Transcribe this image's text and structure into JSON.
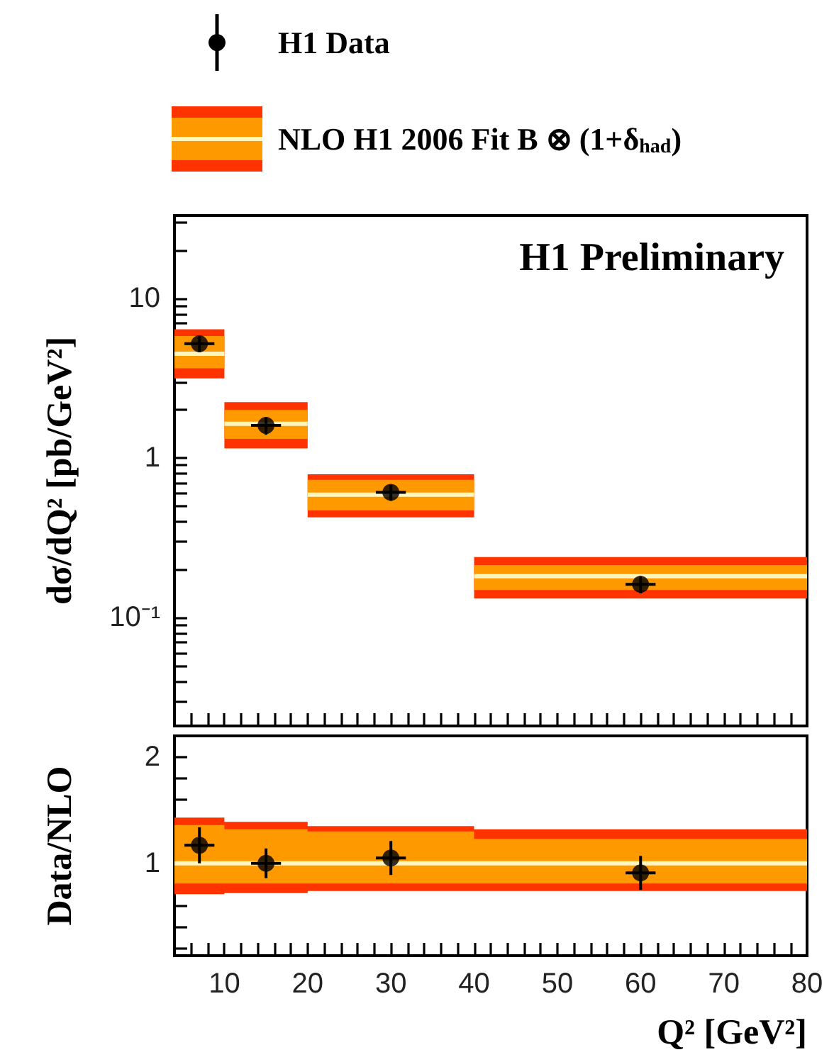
{
  "chart_data": [
    {
      "type": "scatter",
      "ylabel": "dσ/dQ² [pb/GeV²]",
      "annotations": [
        "H1 Preliminary"
      ],
      "legend": "top",
      "log": "y",
      "tick_labels": "y",
      "xlim": [
        4,
        80
      ],
      "ylim": [
        0.021,
        33
      ],
      "xticks": [
        {
          "value": 4,
          "label": null
        },
        {
          "value": 6,
          "label": null
        },
        {
          "value": 8,
          "label": null
        },
        10,
        {
          "value": 12,
          "label": null
        },
        {
          "value": 14,
          "label": null
        },
        {
          "value": 16,
          "label": null
        },
        {
          "value": 18,
          "label": null
        },
        20,
        {
          "value": 22,
          "label": null
        },
        {
          "value": 24,
          "label": null
        },
        {
          "value": 26,
          "label": null
        },
        {
          "value": 28,
          "label": null
        },
        30,
        {
          "value": 32,
          "label": null
        },
        {
          "value": 34,
          "label": null
        },
        {
          "value": 36,
          "label": null
        },
        {
          "value": 38,
          "label": null
        },
        40,
        {
          "value": 42,
          "label": null
        },
        {
          "value": 44,
          "label": null
        },
        {
          "value": 46,
          "label": null
        },
        {
          "value": 48,
          "label": null
        },
        50,
        {
          "value": 52,
          "label": null
        },
        {
          "value": 54,
          "label": null
        },
        {
          "value": 56,
          "label": null
        },
        {
          "value": 58,
          "label": null
        },
        60,
        {
          "value": 62,
          "label": null
        },
        {
          "value": 64,
          "label": null
        },
        {
          "value": 66,
          "label": null
        },
        {
          "value": 68,
          "label": null
        },
        70,
        {
          "value": 72,
          "label": null
        },
        {
          "value": 74,
          "label": null
        },
        {
          "value": 76,
          "label": null
        },
        {
          "value": 78,
          "label": null
        },
        80
      ],
      "yticks": [
        {
          "value": 0.03,
          "label": null
        },
        {
          "value": 0.04,
          "label": null
        },
        {
          "value": 0.05,
          "label": null
        },
        {
          "value": 0.06,
          "label": null
        },
        {
          "value": 0.07,
          "label": null
        },
        {
          "value": 0.08,
          "label": null
        },
        {
          "value": 0.09,
          "label": null
        },
        {
          "value": 0.1,
          "label": "10⁻¹"
        },
        {
          "value": 0.2,
          "label": null
        },
        {
          "value": 0.3,
          "label": null
        },
        {
          "value": 0.4,
          "label": null
        },
        {
          "value": 0.5,
          "label": null
        },
        {
          "value": 0.6,
          "label": null
        },
        {
          "value": 0.7,
          "label": null
        },
        {
          "value": 0.8,
          "label": null
        },
        {
          "value": 0.9,
          "label": null
        },
        1,
        {
          "value": 2,
          "label": null
        },
        {
          "value": 3,
          "label": null
        },
        {
          "value": 4,
          "label": null
        },
        {
          "value": 5,
          "label": null
        },
        {
          "value": 6,
          "label": null
        },
        {
          "value": 7,
          "label": null
        },
        {
          "value": 8,
          "label": null
        },
        {
          "value": 9,
          "label": null
        },
        10,
        {
          "value": 20,
          "label": null
        },
        {
          "value": 30,
          "label": null
        }
      ],
      "series": [
        {
          "name": "H1 Data",
          "marker": "circle",
          "color": "#000000",
          "x": [
            7,
            15,
            30,
            60
          ],
          "values": [
            5.2,
            1.6,
            0.61,
            0.162
          ],
          "errors": [
            0.6,
            0.2,
            0.07,
            0.02
          ],
          "xerrors": [
            1.8,
            1.8,
            1.8,
            1.8
          ]
        },
        {
          "type": "line",
          "color": "#ff3300",
          "x": [
            4,
            10,
            10,
            20,
            20,
            40,
            40,
            80
          ],
          "values": [
            null,
            null,
            null,
            null,
            null,
            null,
            null,
            null
          ],
          "lower": [
            3.15,
            3.15,
            1.15,
            1.15,
            0.425,
            0.425,
            0.132,
            0.132
          ],
          "upper": [
            6.4,
            6.4,
            2.24,
            2.24,
            0.79,
            0.79,
            0.24,
            0.24
          ]
        },
        {
          "type": "line",
          "color": "#ff9900",
          "x": [
            4,
            10,
            10,
            20,
            20,
            40,
            40,
            80
          ],
          "values": [
            null,
            null,
            null,
            null,
            null,
            null,
            null,
            null
          ],
          "lower": [
            3.65,
            3.65,
            1.32,
            1.32,
            0.47,
            0.47,
            0.149,
            0.149
          ],
          "upper": [
            5.8,
            5.8,
            2.0,
            2.0,
            0.73,
            0.73,
            0.214,
            0.214
          ]
        },
        {
          "name": "NLO H1 2006 Fit B ⊗ (1+δ$_{had}$)",
          "type": "line",
          "color": "#fff6c0",
          "x": [
            4,
            10,
            10,
            20,
            20,
            40,
            40,
            80
          ],
          "values": [
            4.5,
            4.5,
            1.64,
            1.64,
            0.59,
            0.59,
            0.182,
            0.182
          ]
        }
      ]
    },
    {
      "type": "scatter",
      "xlabel": "Q² [GeV²]",
      "ylabel": "Data/NLO",
      "xlim": [
        4,
        80
      ],
      "ylim": [
        0.13,
        2.2
      ],
      "xticks": [
        {
          "value": 4,
          "label": null
        },
        {
          "value": 6,
          "label": null
        },
        {
          "value": 8,
          "label": null
        },
        10,
        {
          "value": 12,
          "label": null
        },
        {
          "value": 14,
          "label": null
        },
        {
          "value": 16,
          "label": null
        },
        {
          "value": 18,
          "label": null
        },
        20,
        {
          "value": 22,
          "label": null
        },
        {
          "value": 24,
          "label": null
        },
        {
          "value": 26,
          "label": null
        },
        {
          "value": 28,
          "label": null
        },
        30,
        {
          "value": 32,
          "label": null
        },
        {
          "value": 34,
          "label": null
        },
        {
          "value": 36,
          "label": null
        },
        {
          "value": 38,
          "label": null
        },
        40,
        {
          "value": 42,
          "label": null
        },
        {
          "value": 44,
          "label": null
        },
        {
          "value": 46,
          "label": null
        },
        {
          "value": 48,
          "label": null
        },
        50,
        {
          "value": 52,
          "label": null
        },
        {
          "value": 54,
          "label": null
        },
        {
          "value": 56,
          "label": null
        },
        {
          "value": 58,
          "label": null
        },
        60,
        {
          "value": 62,
          "label": null
        },
        {
          "value": 64,
          "label": null
        },
        {
          "value": 66,
          "label": null
        },
        {
          "value": 68,
          "label": null
        },
        70,
        {
          "value": 72,
          "label": null
        },
        {
          "value": 74,
          "label": null
        },
        {
          "value": 76,
          "label": null
        },
        {
          "value": 78,
          "label": null
        },
        80
      ],
      "yticks": [
        {
          "value": 0.2,
          "label": null
        },
        {
          "value": 0.4,
          "label": null
        },
        {
          "value": 0.6,
          "label": null
        },
        {
          "value": 0.8,
          "label": null
        },
        1,
        {
          "value": 1.2,
          "label": null
        },
        {
          "value": 1.4,
          "label": null
        },
        {
          "value": 1.6,
          "label": null
        },
        {
          "value": 1.8,
          "label": null
        },
        2
      ],
      "series": [
        {
          "marker": "circle",
          "color": "#000000",
          "x": [
            7,
            15,
            30,
            60
          ],
          "values": [
            1.17,
            1.0,
            1.05,
            0.91
          ],
          "errors": [
            0.17,
            0.14,
            0.16,
            0.16
          ],
          "xerrors": [
            1.8,
            1.8,
            1.8,
            1.8
          ]
        },
        {
          "type": "line",
          "color": "#ff3300",
          "x": [
            4,
            10,
            10,
            20,
            20,
            40,
            40,
            80
          ],
          "values": [
            null,
            null,
            null,
            null,
            null,
            null,
            null,
            null
          ],
          "lower": [
            0.71,
            0.71,
            0.72,
            0.72,
            0.74,
            0.74,
            0.74,
            0.74
          ],
          "upper": [
            1.43,
            1.43,
            1.39,
            1.39,
            1.35,
            1.35,
            1.32,
            1.32
          ]
        },
        {
          "type": "line",
          "color": "#ff9900",
          "x": [
            4,
            10,
            10,
            20,
            20,
            40,
            40,
            80
          ],
          "values": [
            null,
            null,
            null,
            null,
            null,
            null,
            null,
            null
          ],
          "lower": [
            0.81,
            0.81,
            0.81,
            0.81,
            0.81,
            0.81,
            0.81,
            0.81
          ],
          "upper": [
            1.36,
            1.36,
            1.32,
            1.32,
            1.3,
            1.3,
            1.23,
            1.23
          ]
        },
        {
          "type": "line",
          "color": "#fff6c0",
          "x": [
            4,
            10,
            10,
            20,
            20,
            40,
            40,
            80
          ],
          "values": [
            1,
            1,
            1,
            1,
            1,
            1,
            1,
            1
          ]
        }
      ]
    }
  ]
}
